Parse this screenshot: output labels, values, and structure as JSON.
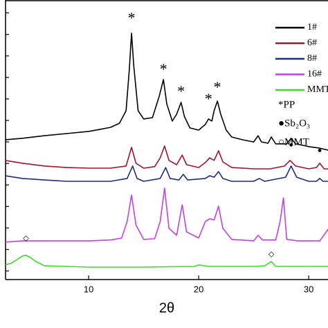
{
  "chart_data": {
    "type": "line",
    "xlabel": "2θ",
    "xlim": [
      2.45,
      31.75
    ],
    "xticks": [
      10,
      20,
      30
    ],
    "ylim": [
      -0.4,
      12.6
    ],
    "yticks": [
      0,
      1,
      2,
      3,
      4,
      5,
      6,
      7,
      8,
      9,
      10,
      11,
      12
    ],
    "legend": "upper right",
    "series": [
      {
        "name": "1#",
        "color": "#000000",
        "x": [
          2.4,
          4,
          6,
          8,
          10,
          11,
          12,
          12.8,
          13.4,
          13.7,
          13.9,
          14.1,
          14.5,
          15,
          15.8,
          16.4,
          16.8,
          17.1,
          17.6,
          18.0,
          18.4,
          18.7,
          19.2,
          20,
          20.6,
          20.9,
          21.2,
          21.4,
          21.7,
          22.0,
          22.5,
          23,
          24,
          25,
          25.4,
          25.7,
          26.3,
          26.6,
          27,
          28,
          28.4,
          28.8,
          29.5,
          30,
          31,
          31.5,
          32
        ],
        "values": [
          6.1,
          6.17,
          6.29,
          6.39,
          6.49,
          6.58,
          6.68,
          6.87,
          7.45,
          9.38,
          11.06,
          9.54,
          7.45,
          7.07,
          7.13,
          8.1,
          8.9,
          7.77,
          6.97,
          7.29,
          7.84,
          7.19,
          6.65,
          6.55,
          6.81,
          7.07,
          6.97,
          7.45,
          7.9,
          7.29,
          6.55,
          6.23,
          6.1,
          6.0,
          6.29,
          6.0,
          5.94,
          6.23,
          5.91,
          5.91,
          6.17,
          5.91,
          5.84,
          5.78,
          5.71,
          5.65,
          5.59
        ]
      },
      {
        "name": "6#",
        "color": "#a3122a",
        "x": [
          2.4,
          4,
          6,
          8,
          10,
          12,
          13.4,
          13.9,
          14.3,
          15,
          16,
          16.5,
          16.9,
          17.3,
          18,
          18.5,
          18.9,
          20,
          20.6,
          21,
          21.4,
          21.8,
          22.2,
          23,
          25,
          26.5,
          27.8,
          28.3,
          28.8,
          30,
          30.7,
          31,
          31.4,
          32
        ],
        "values": [
          5.14,
          5.01,
          4.88,
          4.81,
          4.78,
          4.78,
          4.88,
          5.75,
          5.01,
          4.78,
          4.85,
          5.26,
          5.81,
          5.14,
          4.94,
          5.39,
          4.94,
          4.81,
          5.04,
          5.26,
          5.14,
          5.59,
          5.07,
          4.81,
          4.75,
          4.75,
          4.88,
          5.14,
          4.88,
          4.75,
          4.81,
          5.01,
          4.75,
          4.75
        ]
      },
      {
        "name": "8#",
        "color": "#1c2a80",
        "x": [
          2.4,
          4,
          6,
          8,
          10,
          12,
          13.5,
          14,
          14.4,
          15,
          16.5,
          17,
          17.4,
          18.2,
          18.6,
          19,
          20.6,
          21,
          21.4,
          21.8,
          22.2,
          23,
          25,
          25.5,
          26,
          27.9,
          28.4,
          28.9,
          30,
          30.7,
          31,
          31.3,
          32
        ],
        "values": [
          4.43,
          4.3,
          4.23,
          4.17,
          4.17,
          4.17,
          4.3,
          4.88,
          4.3,
          4.17,
          4.3,
          4.81,
          4.3,
          4.23,
          4.49,
          4.23,
          4.3,
          4.43,
          4.36,
          4.62,
          4.3,
          4.17,
          4.17,
          4.3,
          4.17,
          4.36,
          4.88,
          4.36,
          4.17,
          4.17,
          4.3,
          4.17,
          4.17
        ]
      },
      {
        "name": "16#",
        "color": "#c440e4",
        "x": [
          2.4,
          4,
          6,
          8,
          10,
          12,
          13,
          13.5,
          13.9,
          14.3,
          15,
          16,
          16.5,
          16.9,
          17.3,
          18,
          18.5,
          18.9,
          20,
          20.6,
          21,
          21.4,
          21.8,
          22.2,
          23,
          25,
          25.4,
          25.8,
          27,
          27.4,
          27.7,
          28,
          29,
          31,
          31.6,
          31.9
        ],
        "values": [
          1.34,
          1.4,
          1.4,
          1.4,
          1.4,
          1.44,
          1.53,
          2.3,
          3.53,
          2.14,
          1.47,
          1.5,
          2.3,
          3.85,
          1.98,
          1.66,
          3.08,
          1.82,
          1.53,
          2.3,
          2.43,
          2.37,
          3.01,
          1.98,
          1.47,
          1.4,
          1.66,
          1.44,
          1.44,
          2.3,
          3.4,
          1.47,
          1.4,
          1.4,
          1.82,
          2.05
        ]
      },
      {
        "name": "MMT",
        "color": "#3ddc26",
        "x": [
          2.4,
          3,
          3.5,
          4,
          4.3,
          4.7,
          5.2,
          6,
          8,
          10,
          15,
          19.6,
          20,
          21,
          25,
          26,
          26.6,
          27,
          29,
          32
        ],
        "values": [
          0.28,
          0.37,
          0.53,
          0.7,
          0.73,
          0.63,
          0.44,
          0.24,
          0.21,
          0.18,
          0.18,
          0.21,
          0.28,
          0.21,
          0.21,
          0.24,
          0.44,
          0.21,
          0.21,
          0.21
        ]
      }
    ],
    "annotations": [
      {
        "text": "*",
        "x": 13.9,
        "y": 11.7
      },
      {
        "text": "*",
        "x": 16.8,
        "y": 9.32
      },
      {
        "text": "*",
        "x": 18.4,
        "y": 8.29
      },
      {
        "text": "*",
        "x": 20.9,
        "y": 7.93
      },
      {
        "text": "*",
        "x": 21.7,
        "y": 8.48
      },
      {
        "text": "●",
        "x": 28.4,
        "y": 5.84
      },
      {
        "text": "●",
        "x": 31.0,
        "y": 5.58
      },
      {
        "text": "◇",
        "x": 4.3,
        "y": 1.5
      },
      {
        "text": "◇",
        "x": 26.6,
        "y": 0.76
      }
    ],
    "notes": [
      "*PP",
      "●Sb₂O₃",
      "○MMT"
    ]
  }
}
